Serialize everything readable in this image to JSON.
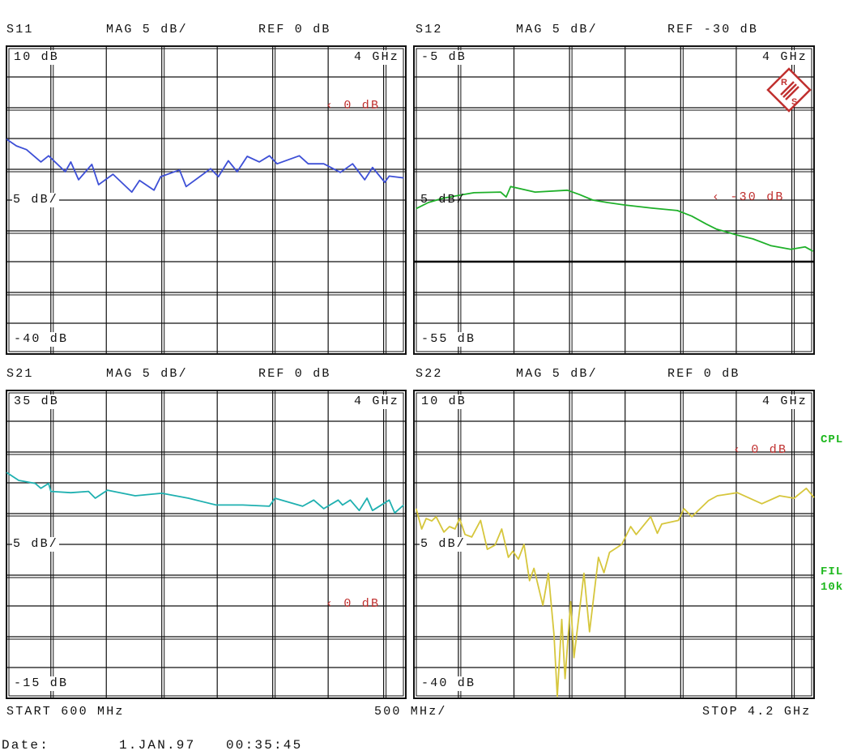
{
  "colors": {
    "grid": "#111111",
    "ref_marker": "#c0302f",
    "side_labels": "#1fb81f",
    "logo": "#c0302f"
  },
  "logo": {
    "name": "rohde-schwarz-logo",
    "text": "R&S"
  },
  "panels": [
    {
      "param": "S11",
      "mag": "MAG 5 dB/",
      "ref": "REF 0 dB",
      "top_label": "10 dB",
      "freq_label": "4 GHz",
      "scale_label": "5 dB/",
      "bottom_label": "-40 dB",
      "ref_marker": "0 dB"
    },
    {
      "param": "S12",
      "mag": "MAG 5 dB/",
      "ref": "REF -30 dB",
      "top_label": "-5 dB",
      "freq_label": "4 GHz",
      "scale_label": "5 dB/",
      "bottom_label": "-55 dB",
      "ref_marker": "-30 dB"
    },
    {
      "param": "S21",
      "mag": "MAG 5 dB/",
      "ref": "REF 0 dB",
      "top_label": "35 dB",
      "freq_label": "4 GHz",
      "scale_label": "5 dB/",
      "bottom_label": "-15 dB",
      "ref_marker": "0 dB"
    },
    {
      "param": "S22",
      "mag": "MAG 5 dB/",
      "ref": "REF 0 dB",
      "top_label": "10 dB",
      "freq_label": "4 GHz",
      "scale_label": "5 dB/",
      "bottom_label": "-40 dB",
      "ref_marker": "0 dB"
    }
  ],
  "side": {
    "cpl": "CPL",
    "fil": "FIL",
    "fil_bw": "10k"
  },
  "footer": {
    "start": "START 600 MHz",
    "span": "500 MHz/",
    "stop": "STOP 4.2 GHz",
    "date_label": "Date:",
    "date": "1.JAN.97",
    "time": "00:35:45"
  },
  "chart_data": [
    {
      "type": "line",
      "title": "S11",
      "xlim": [
        0.6,
        4.2
      ],
      "ylim": [
        -40,
        10
      ],
      "ref_level": 0,
      "scale_db_per_div": 5,
      "grid": true,
      "color": "#3d4fd6",
      "x": [
        0.6,
        0.69,
        0.78,
        0.91,
        0.98,
        1.13,
        1.18,
        1.25,
        1.37,
        1.43,
        1.56,
        1.73,
        1.8,
        1.93,
        1.99,
        2.16,
        2.22,
        2.44,
        2.51,
        2.6,
        2.68,
        2.77,
        2.88,
        2.97,
        3.04,
        3.24,
        3.32,
        3.46,
        3.61,
        3.72,
        3.83,
        3.9,
        4.01,
        4.05,
        4.18
      ],
      "y": [
        -5.1,
        -6.2,
        -6.8,
        -8.8,
        -7.8,
        -10.4,
        -8.8,
        -11.7,
        -9.2,
        -12.5,
        -10.8,
        -13.7,
        -11.8,
        -13.4,
        -11.2,
        -10.1,
        -12.8,
        -9.9,
        -11.2,
        -8.6,
        -10.4,
        -7.9,
        -8.8,
        -7.8,
        -9.1,
        -7.8,
        -9.1,
        -9.1,
        -10.5,
        -9.1,
        -11.7,
        -9.7,
        -12.1,
        -11.1,
        -11.4
      ]
    },
    {
      "type": "line",
      "title": "S12",
      "xlim": [
        0.6,
        4.2
      ],
      "ylim": [
        -55,
        -5
      ],
      "ref_level": -30,
      "scale_db_per_div": 5,
      "grid": true,
      "limit_line": -40,
      "color": "#1fb02a",
      "x": [
        0.62,
        0.73,
        0.86,
        1.04,
        1.14,
        1.38,
        1.43,
        1.47,
        1.69,
        1.98,
        2.09,
        2.21,
        2.34,
        2.5,
        2.74,
        2.97,
        3.1,
        3.23,
        3.32,
        3.51,
        3.65,
        3.81,
        3.99,
        4.12,
        4.19
      ],
      "y": [
        -31.4,
        -30.4,
        -29.7,
        -29.1,
        -28.8,
        -28.7,
        -29.5,
        -27.8,
        -28.7,
        -28.4,
        -29.1,
        -30.0,
        -30.4,
        -30.8,
        -31.3,
        -31.7,
        -32.6,
        -33.9,
        -34.7,
        -35.7,
        -36.3,
        -37.4,
        -38.0,
        -37.6,
        -38.3
      ]
    },
    {
      "type": "line",
      "title": "S21",
      "xlim": [
        0.6,
        4.2
      ],
      "ylim": [
        -15,
        35
      ],
      "ref_level": 0,
      "scale_db_per_div": 5,
      "grid": true,
      "color": "#1fb0b0",
      "x": [
        0.6,
        0.71,
        0.86,
        0.91,
        0.98,
        1.0,
        1.18,
        1.34,
        1.4,
        1.51,
        1.76,
        2.0,
        2.24,
        2.49,
        2.73,
        2.97,
        3.02,
        3.27,
        3.37,
        3.46,
        3.59,
        3.63,
        3.7,
        3.78,
        3.85,
        3.9,
        4.05,
        4.1,
        4.18
      ],
      "y": [
        21.7,
        20.4,
        19.9,
        19.1,
        19.9,
        18.6,
        18.4,
        18.6,
        17.5,
        18.8,
        17.9,
        18.3,
        17.5,
        16.4,
        16.4,
        16.2,
        17.5,
        16.2,
        17.2,
        15.8,
        17.2,
        16.4,
        17.2,
        15.5,
        17.5,
        15.5,
        17.2,
        15.1,
        16.4
      ]
    },
    {
      "type": "line",
      "title": "S22",
      "xlim": [
        0.6,
        4.2
      ],
      "ylim": [
        -40,
        10
      ],
      "ref_level": 0,
      "scale_db_per_div": 5,
      "grid": true,
      "color": "#d6c63c",
      "x": [
        0.62,
        0.67,
        0.71,
        0.76,
        0.8,
        0.87,
        0.92,
        0.97,
        1.01,
        1.06,
        1.12,
        1.2,
        1.26,
        1.33,
        1.39,
        1.45,
        1.49,
        1.54,
        1.59,
        1.64,
        1.68,
        1.76,
        1.81,
        1.86,
        1.89,
        1.93,
        1.96,
        2.01,
        2.04,
        2.13,
        2.18,
        2.26,
        2.31,
        2.36,
        2.47,
        2.55,
        2.6,
        2.73,
        2.79,
        2.83,
        2.98,
        3.03,
        3.1,
        3.25,
        3.33,
        3.51,
        3.73,
        3.89,
        4.02,
        4.13,
        4.2
      ],
      "y": [
        -9.2,
        -12.5,
        -10.8,
        -11.2,
        -10.5,
        -13.0,
        -12.1,
        -12.5,
        -10.8,
        -13.4,
        -13.8,
        -11.1,
        -15.8,
        -15.1,
        -12.5,
        -17.1,
        -16.1,
        -17.4,
        -15.0,
        -20.9,
        -18.9,
        -24.9,
        -19.7,
        -29.6,
        -39.7,
        -27.2,
        -36.8,
        -24.3,
        -33.4,
        -19.7,
        -29.2,
        -17.1,
        -19.6,
        -16.3,
        -15.0,
        -12.1,
        -13.4,
        -10.5,
        -13.2,
        -11.7,
        -11.1,
        -9.2,
        -10.5,
        -7.9,
        -7.1,
        -6.6,
        -8.4,
        -7.1,
        -7.5,
        -5.9,
        -7.4
      ]
    }
  ]
}
